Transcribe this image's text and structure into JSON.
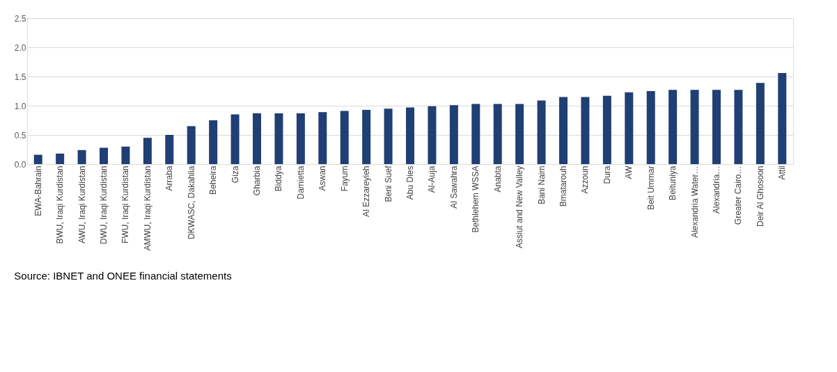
{
  "chart_data": {
    "type": "bar",
    "categories": [
      "EWA-Bahrain",
      "BWU, Iraqi Kurdistan",
      "AWU, Iraqi Kurdistan",
      "DWU, Iraqi Kurdistan",
      "FWU, Iraqi Kurdistan",
      "AMWU, Iraqi Kurdistan",
      "Arraba",
      "DKWASC, Dakahlia",
      "Beheira",
      "Giza",
      "Gharbia",
      "Biddya",
      "Damietta",
      "Aswan",
      "Fayum",
      "Al Ezzareyieh",
      "Beni Suef",
      "Abu Dies",
      "Al-Auja",
      "Al Sawahra",
      "Bethlehem WSSA",
      "Anabta",
      "Assiut and New Valley",
      "Bani Naim",
      "Bmatarouh",
      "Azzoun",
      "Dura",
      "AW",
      "Beit Ummar",
      "Beituniya",
      "Alexandria Water…",
      "Alexandria…",
      "Greater Cairo…",
      "Deir Al Ghosoon",
      "Attil"
    ],
    "values": [
      0.16,
      0.18,
      0.24,
      0.28,
      0.3,
      0.45,
      0.5,
      0.65,
      0.75,
      0.85,
      0.87,
      0.87,
      0.87,
      0.89,
      0.91,
      0.93,
      0.95,
      0.97,
      0.99,
      1.01,
      1.03,
      1.03,
      1.03,
      1.09,
      1.15,
      1.15,
      1.17,
      1.23,
      1.25,
      1.27,
      1.27,
      1.27,
      1.27,
      1.39,
      1.56
    ],
    "color": "#203f74",
    "ylim": [
      0,
      2.5
    ],
    "yticks": [
      {
        "value": 0,
        "label": "0.0"
      },
      {
        "value": 0.5,
        "label": "0.5"
      },
      {
        "value": 1,
        "label": "1.0"
      },
      {
        "value": 1.5,
        "label": "1.5"
      },
      {
        "value": 2,
        "label": "2.0"
      },
      {
        "value": 2.5,
        "label": "2.5"
      }
    ],
    "grid": "y",
    "annotations": [
      "Source: IBNET and ONEE financial statements"
    ]
  }
}
